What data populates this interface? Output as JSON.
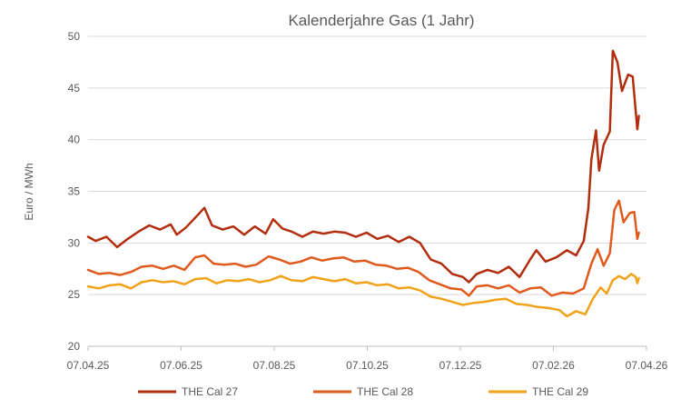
{
  "chart_data": {
    "type": "line",
    "title": "Kalenderjahre Gas (1 Jahr)",
    "xlabel": "",
    "ylabel": "Euro / MWh",
    "ylim": [
      20,
      50
    ],
    "yticks": [
      "20",
      "25",
      "30",
      "35",
      "40",
      "45",
      "50"
    ],
    "x_tick_labels": [
      "07.04.25",
      "07.06.25",
      "07.08.25",
      "07.10.25",
      "07.12.25",
      "07.02.26",
      "07.04.26"
    ],
    "x_range": [
      "2025-04-07",
      "2026-04-07"
    ],
    "grid": "horizontal",
    "legend_position": "bottom",
    "series": [
      {
        "name": "THE Cal 27",
        "color": "#b22d0e",
        "points": [
          [
            "2025-04-07",
            30.6
          ],
          [
            "2025-04-12",
            30.2
          ],
          [
            "2025-04-19",
            30.6
          ],
          [
            "2025-04-26",
            29.6
          ],
          [
            "2025-05-03",
            30.4
          ],
          [
            "2025-05-10",
            31.1
          ],
          [
            "2025-05-17",
            31.7
          ],
          [
            "2025-05-24",
            31.3
          ],
          [
            "2025-05-31",
            31.8
          ],
          [
            "2025-06-04",
            30.8
          ],
          [
            "2025-06-10",
            31.5
          ],
          [
            "2025-06-17",
            32.6
          ],
          [
            "2025-06-22",
            33.4
          ],
          [
            "2025-06-27",
            31.7
          ],
          [
            "2025-07-04",
            31.3
          ],
          [
            "2025-07-11",
            31.6
          ],
          [
            "2025-07-18",
            30.8
          ],
          [
            "2025-07-25",
            31.6
          ],
          [
            "2025-08-01",
            30.9
          ],
          [
            "2025-08-06",
            32.3
          ],
          [
            "2025-08-12",
            31.4
          ],
          [
            "2025-08-18",
            31.1
          ],
          [
            "2025-08-25",
            30.6
          ],
          [
            "2025-09-01",
            31.1
          ],
          [
            "2025-09-08",
            30.9
          ],
          [
            "2025-09-15",
            31.1
          ],
          [
            "2025-09-22",
            31.0
          ],
          [
            "2025-09-29",
            30.6
          ],
          [
            "2025-10-06",
            31.0
          ],
          [
            "2025-10-13",
            30.4
          ],
          [
            "2025-10-20",
            30.7
          ],
          [
            "2025-10-27",
            30.1
          ],
          [
            "2025-11-03",
            30.6
          ],
          [
            "2025-11-10",
            30.0
          ],
          [
            "2025-11-17",
            28.4
          ],
          [
            "2025-11-24",
            28.0
          ],
          [
            "2025-12-01",
            27.0
          ],
          [
            "2025-12-08",
            26.7
          ],
          [
            "2025-12-12",
            26.2
          ],
          [
            "2025-12-17",
            27.0
          ],
          [
            "2025-12-24",
            27.4
          ],
          [
            "2025-12-31",
            27.1
          ],
          [
            "2026-01-07",
            27.7
          ],
          [
            "2026-01-14",
            26.7
          ],
          [
            "2026-01-21",
            28.4
          ],
          [
            "2026-01-25",
            29.3
          ],
          [
            "2026-01-31",
            28.2
          ],
          [
            "2026-02-07",
            28.6
          ],
          [
            "2026-02-14",
            29.3
          ],
          [
            "2026-02-20",
            28.8
          ],
          [
            "2026-02-25",
            30.2
          ],
          [
            "2026-02-28",
            33.4
          ],
          [
            "2026-03-02",
            38.1
          ],
          [
            "2026-03-05",
            40.9
          ],
          [
            "2026-03-07",
            37.0
          ],
          [
            "2026-03-10",
            39.5
          ],
          [
            "2026-03-14",
            40.8
          ],
          [
            "2026-03-16",
            48.6
          ],
          [
            "2026-03-19",
            47.5
          ],
          [
            "2026-03-22",
            44.7
          ],
          [
            "2026-03-26",
            46.3
          ],
          [
            "2026-03-29",
            46.1
          ],
          [
            "2026-04-01",
            41.0
          ],
          [
            "2026-04-02",
            42.3
          ]
        ]
      },
      {
        "name": "THE Cal 28",
        "color": "#e05a1e",
        "points": [
          [
            "2025-04-07",
            27.4
          ],
          [
            "2025-04-14",
            27.0
          ],
          [
            "2025-04-21",
            27.1
          ],
          [
            "2025-04-28",
            26.9
          ],
          [
            "2025-05-05",
            27.2
          ],
          [
            "2025-05-12",
            27.7
          ],
          [
            "2025-05-19",
            27.8
          ],
          [
            "2025-05-26",
            27.5
          ],
          [
            "2025-06-02",
            27.8
          ],
          [
            "2025-06-09",
            27.4
          ],
          [
            "2025-06-16",
            28.6
          ],
          [
            "2025-06-22",
            28.8
          ],
          [
            "2025-06-28",
            28.0
          ],
          [
            "2025-07-05",
            27.9
          ],
          [
            "2025-07-12",
            28.0
          ],
          [
            "2025-07-19",
            27.7
          ],
          [
            "2025-07-26",
            27.9
          ],
          [
            "2025-08-03",
            28.7
          ],
          [
            "2025-08-10",
            28.4
          ],
          [
            "2025-08-17",
            28.0
          ],
          [
            "2025-08-24",
            28.2
          ],
          [
            "2025-08-31",
            28.6
          ],
          [
            "2025-09-07",
            28.3
          ],
          [
            "2025-09-14",
            28.5
          ],
          [
            "2025-09-21",
            28.6
          ],
          [
            "2025-09-28",
            28.2
          ],
          [
            "2025-10-05",
            28.3
          ],
          [
            "2025-10-12",
            27.9
          ],
          [
            "2025-10-19",
            27.8
          ],
          [
            "2025-10-26",
            27.5
          ],
          [
            "2025-11-02",
            27.6
          ],
          [
            "2025-11-09",
            27.2
          ],
          [
            "2025-11-16",
            26.4
          ],
          [
            "2025-11-23",
            26.0
          ],
          [
            "2025-11-30",
            25.6
          ],
          [
            "2025-12-07",
            25.5
          ],
          [
            "2025-12-12",
            24.9
          ],
          [
            "2025-12-17",
            25.8
          ],
          [
            "2025-12-24",
            25.9
          ],
          [
            "2025-12-31",
            25.6
          ],
          [
            "2026-01-07",
            25.9
          ],
          [
            "2026-01-14",
            25.2
          ],
          [
            "2026-01-21",
            25.6
          ],
          [
            "2026-01-28",
            25.7
          ],
          [
            "2026-02-04",
            24.9
          ],
          [
            "2026-02-11",
            25.2
          ],
          [
            "2026-02-18",
            25.1
          ],
          [
            "2026-02-25",
            25.6
          ],
          [
            "2026-03-02",
            28.0
          ],
          [
            "2026-03-06",
            29.4
          ],
          [
            "2026-03-10",
            27.8
          ],
          [
            "2026-03-14",
            29.0
          ],
          [
            "2026-03-17",
            33.2
          ],
          [
            "2026-03-20",
            34.1
          ],
          [
            "2026-03-23",
            32.0
          ],
          [
            "2026-03-27",
            32.9
          ],
          [
            "2026-03-30",
            33.0
          ],
          [
            "2026-04-01",
            30.4
          ],
          [
            "2026-04-02",
            31.0
          ]
        ]
      },
      {
        "name": "THE Cal 29",
        "color": "#f2a21a",
        "points": [
          [
            "2025-04-07",
            25.8
          ],
          [
            "2025-04-14",
            25.6
          ],
          [
            "2025-04-21",
            25.9
          ],
          [
            "2025-04-28",
            26.0
          ],
          [
            "2025-05-05",
            25.6
          ],
          [
            "2025-05-12",
            26.2
          ],
          [
            "2025-05-19",
            26.4
          ],
          [
            "2025-05-26",
            26.2
          ],
          [
            "2025-06-02",
            26.3
          ],
          [
            "2025-06-09",
            26.0
          ],
          [
            "2025-06-16",
            26.5
          ],
          [
            "2025-06-23",
            26.6
          ],
          [
            "2025-06-30",
            26.1
          ],
          [
            "2025-07-07",
            26.4
          ],
          [
            "2025-07-14",
            26.3
          ],
          [
            "2025-07-21",
            26.5
          ],
          [
            "2025-07-28",
            26.2
          ],
          [
            "2025-08-04",
            26.4
          ],
          [
            "2025-08-11",
            26.8
          ],
          [
            "2025-08-18",
            26.4
          ],
          [
            "2025-08-25",
            26.3
          ],
          [
            "2025-09-01",
            26.7
          ],
          [
            "2025-09-08",
            26.5
          ],
          [
            "2025-09-15",
            26.3
          ],
          [
            "2025-09-22",
            26.5
          ],
          [
            "2025-09-29",
            26.1
          ],
          [
            "2025-10-06",
            26.2
          ],
          [
            "2025-10-13",
            25.9
          ],
          [
            "2025-10-20",
            26.0
          ],
          [
            "2025-10-27",
            25.6
          ],
          [
            "2025-11-03",
            25.7
          ],
          [
            "2025-11-10",
            25.4
          ],
          [
            "2025-11-17",
            24.8
          ],
          [
            "2025-11-24",
            24.6
          ],
          [
            "2025-12-01",
            24.3
          ],
          [
            "2025-12-08",
            24.0
          ],
          [
            "2025-12-15",
            24.2
          ],
          [
            "2025-12-22",
            24.3
          ],
          [
            "2025-12-29",
            24.5
          ],
          [
            "2026-01-05",
            24.6
          ],
          [
            "2026-01-12",
            24.1
          ],
          [
            "2026-01-19",
            24.0
          ],
          [
            "2026-01-26",
            23.8
          ],
          [
            "2026-02-02",
            23.7
          ],
          [
            "2026-02-09",
            23.5
          ],
          [
            "2026-02-14",
            22.9
          ],
          [
            "2026-02-20",
            23.4
          ],
          [
            "2026-02-26",
            23.1
          ],
          [
            "2026-03-03",
            24.6
          ],
          [
            "2026-03-08",
            25.7
          ],
          [
            "2026-03-12",
            25.1
          ],
          [
            "2026-03-16",
            26.4
          ],
          [
            "2026-03-20",
            26.8
          ],
          [
            "2026-03-24",
            26.5
          ],
          [
            "2026-03-28",
            27.0
          ],
          [
            "2026-03-31",
            26.7
          ],
          [
            "2026-04-01",
            26.1
          ],
          [
            "2026-04-02",
            26.6
          ]
        ]
      }
    ]
  }
}
